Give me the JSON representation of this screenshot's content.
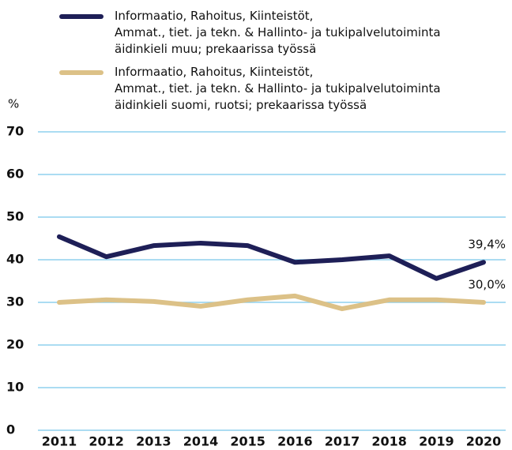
{
  "chart_data": {
    "type": "line",
    "y_label": "%",
    "categories": [
      "2011",
      "2012",
      "2013",
      "2014",
      "2015",
      "2016",
      "2017",
      "2018",
      "2019",
      "2020"
    ],
    "series": [
      {
        "name": "Informaatio, Rahoitus, Kiinteistöt,\nAmmat., tiet. ja tekn. & Hallinto- ja tukipalvelutoiminta\näidinkieli muu; prekaarissa työssä",
        "color": "#1e1f57",
        "values": [
          45.4,
          40.7,
          43.3,
          43.9,
          43.3,
          39.4,
          40.0,
          40.9,
          35.6,
          39.4
        ],
        "value_labels": [
          null,
          null,
          null,
          null,
          null,
          null,
          null,
          null,
          null,
          "39,4%"
        ]
      },
      {
        "name": "Informaatio, Rahoitus, Kiinteistöt,\nAmmat., tiet. ja tekn. & Hallinto- ja tukipalvelutoiminta\näidinkieli suomi, ruotsi; prekaarissa työssä",
        "color": "#dcc187",
        "values": [
          30.0,
          30.6,
          30.2,
          29.1,
          30.6,
          31.5,
          28.5,
          30.6,
          30.6,
          30.0
        ],
        "value_labels": [
          null,
          null,
          null,
          null,
          null,
          null,
          null,
          null,
          null,
          "30,0%"
        ]
      }
    ],
    "ylim": [
      0,
      70
    ],
    "yticks": [
      0,
      10,
      20,
      30,
      40,
      50,
      60,
      70
    ],
    "grid": true
  }
}
